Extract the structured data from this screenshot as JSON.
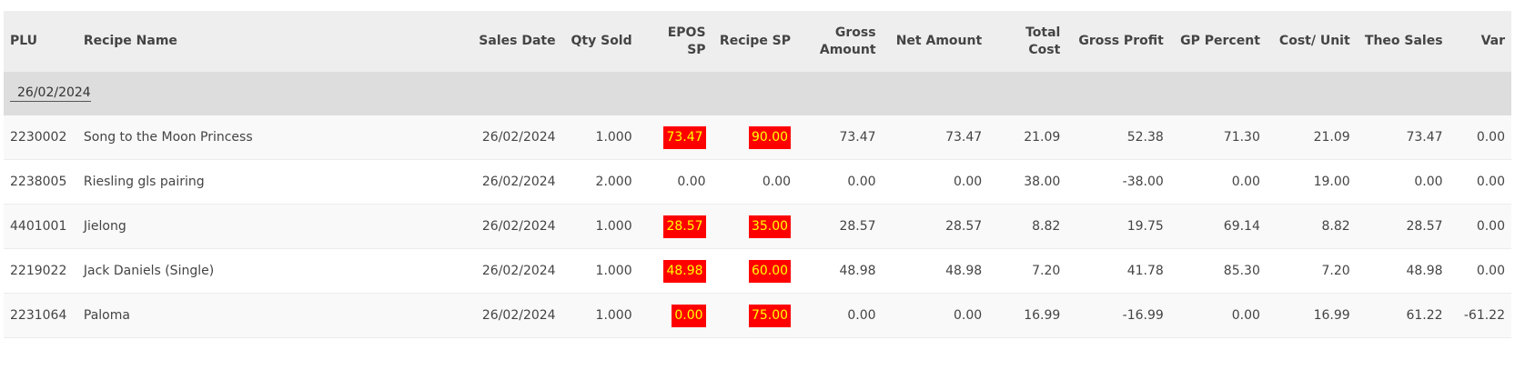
{
  "columns": [
    {
      "key": "plu",
      "label": "PLU",
      "align": "l"
    },
    {
      "key": "recipe_name",
      "label": "Recipe Name",
      "align": "l"
    },
    {
      "key": "sales_date",
      "label": "Sales Date",
      "align": "r"
    },
    {
      "key": "qty_sold",
      "label": "Qty Sold",
      "align": "r"
    },
    {
      "key": "epos_sp",
      "label": "EPOS SP",
      "align": "r"
    },
    {
      "key": "recipe_sp",
      "label": "Recipe SP",
      "align": "r"
    },
    {
      "key": "gross_amount",
      "label": "Gross Amount",
      "align": "r"
    },
    {
      "key": "net_amount",
      "label": "Net Amount",
      "align": "r"
    },
    {
      "key": "total_cost",
      "label": "Total Cost",
      "align": "r"
    },
    {
      "key": "gross_profit",
      "label": "Gross Profit",
      "align": "r"
    },
    {
      "key": "gp_percent",
      "label": "GP Percent",
      "align": "r"
    },
    {
      "key": "cost_unit",
      "label": "Cost/ Unit",
      "align": "r"
    },
    {
      "key": "theo_sales",
      "label": "Theo Sales",
      "align": "r"
    },
    {
      "key": "var",
      "label": "Var",
      "align": "r"
    }
  ],
  "group": {
    "label": "26/02/2024"
  },
  "rows": [
    {
      "plu": "2230002",
      "recipe_name": "Song to the Moon Princess",
      "sales_date": "26/02/2024",
      "qty_sold": "1.000",
      "epos_sp": "73.47",
      "epos_sp_flag": true,
      "recipe_sp": "90.00",
      "recipe_sp_flag": true,
      "gross_amount": "73.47",
      "net_amount": "73.47",
      "total_cost": "21.09",
      "gross_profit": "52.38",
      "gp_percent": "71.30",
      "cost_unit": "21.09",
      "theo_sales": "73.47",
      "var": "0.00"
    },
    {
      "plu": "2238005",
      "recipe_name": "Riesling gls pairing",
      "sales_date": "26/02/2024",
      "qty_sold": "2.000",
      "epos_sp": "0.00",
      "epos_sp_flag": false,
      "recipe_sp": "0.00",
      "recipe_sp_flag": false,
      "gross_amount": "0.00",
      "net_amount": "0.00",
      "total_cost": "38.00",
      "gross_profit": "-38.00",
      "gp_percent": "0.00",
      "cost_unit": "19.00",
      "theo_sales": "0.00",
      "var": "0.00"
    },
    {
      "plu": "4401001",
      "recipe_name": "Jielong",
      "sales_date": "26/02/2024",
      "qty_sold": "1.000",
      "epos_sp": "28.57",
      "epos_sp_flag": true,
      "recipe_sp": "35.00",
      "recipe_sp_flag": true,
      "gross_amount": "28.57",
      "net_amount": "28.57",
      "total_cost": "8.82",
      "gross_profit": "19.75",
      "gp_percent": "69.14",
      "cost_unit": "8.82",
      "theo_sales": "28.57",
      "var": "0.00"
    },
    {
      "plu": "2219022",
      "recipe_name": "Jack Daniels (Single)",
      "sales_date": "26/02/2024",
      "qty_sold": "1.000",
      "epos_sp": "48.98",
      "epos_sp_flag": true,
      "recipe_sp": "60.00",
      "recipe_sp_flag": true,
      "gross_amount": "48.98",
      "net_amount": "48.98",
      "total_cost": "7.20",
      "gross_profit": "41.78",
      "gp_percent": "85.30",
      "cost_unit": "7.20",
      "theo_sales": "48.98",
      "var": "0.00"
    },
    {
      "plu": "2231064",
      "recipe_name": "Paloma",
      "sales_date": "26/02/2024",
      "qty_sold": "1.000",
      "epos_sp": "0.00",
      "epos_sp_flag": true,
      "recipe_sp": "75.00",
      "recipe_sp_flag": true,
      "gross_amount": "0.00",
      "net_amount": "0.00",
      "total_cost": "16.99",
      "gross_profit": "-16.99",
      "gp_percent": "0.00",
      "cost_unit": "16.99",
      "theo_sales": "61.22",
      "var": "-61.22"
    }
  ],
  "colors": {
    "flag_bg": "#ff0000",
    "flag_text": "#ffff00",
    "header_bg": "#eeeeee",
    "group_bg": "#dddddd"
  }
}
